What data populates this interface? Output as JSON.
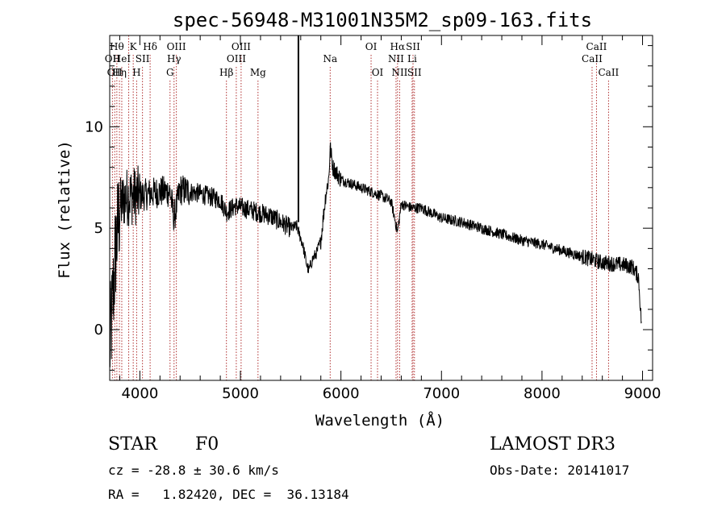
{
  "chart_data": {
    "type": "line",
    "title": "spec-56948-M31001N35M2_sp09-163.fits",
    "xlabel": "Wavelength (Å)",
    "ylabel": "Flux (relative)",
    "xlim": [
      3700,
      9100
    ],
    "ylim": [
      -2.5,
      14.5
    ],
    "xticks": [
      4000,
      5000,
      6000,
      7000,
      8000,
      9000
    ],
    "yticks": [
      0,
      5,
      10
    ],
    "spectrum_anchors": [
      [
        3700,
        -1.0
      ],
      [
        3720,
        0.5
      ],
      [
        3760,
        4.0
      ],
      [
        3800,
        6.0
      ],
      [
        3850,
        6.5
      ],
      [
        3900,
        6.6
      ],
      [
        4000,
        6.6
      ],
      [
        4100,
        6.7
      ],
      [
        4200,
        6.8
      ],
      [
        4300,
        6.8
      ],
      [
        4340,
        5.5
      ],
      [
        4400,
        6.9
      ],
      [
        4600,
        6.7
      ],
      [
        4800,
        6.4
      ],
      [
        4862,
        5.8
      ],
      [
        4950,
        6.1
      ],
      [
        5100,
        5.9
      ],
      [
        5300,
        5.6
      ],
      [
        5400,
        5.3
      ],
      [
        5500,
        5.0
      ],
      [
        5560,
        5.1
      ],
      [
        5580,
        4.8
      ],
      [
        5620,
        4.2
      ],
      [
        5660,
        3.2
      ],
      [
        5680,
        2.9
      ],
      [
        5720,
        3.5
      ],
      [
        5760,
        3.8
      ],
      [
        5800,
        4.4
      ],
      [
        5850,
        6.7
      ],
      [
        5880,
        7.5
      ],
      [
        5893,
        9.0
      ],
      [
        5920,
        8.0
      ],
      [
        6000,
        7.4
      ],
      [
        6100,
        7.2
      ],
      [
        6200,
        7.0
      ],
      [
        6300,
        6.8
      ],
      [
        6400,
        6.6
      ],
      [
        6500,
        6.3
      ],
      [
        6563,
        4.8
      ],
      [
        6600,
        6.2
      ],
      [
        6700,
        6.0
      ],
      [
        6800,
        6.0
      ],
      [
        7000,
        5.5
      ],
      [
        7200,
        5.3
      ],
      [
        7400,
        5.0
      ],
      [
        7600,
        4.7
      ],
      [
        7800,
        4.4
      ],
      [
        8000,
        4.2
      ],
      [
        8200,
        3.9
      ],
      [
        8400,
        3.6
      ],
      [
        8600,
        3.3
      ],
      [
        8800,
        3.2
      ],
      [
        8900,
        3.1
      ],
      [
        8960,
        2.6
      ],
      [
        8990,
        0.2
      ]
    ],
    "emission_spike": {
      "x": 5577,
      "y_top": 14.5,
      "y_base": 5.3
    },
    "spectral_lines": [
      {
        "wl": 3727,
        "label": "OII",
        "row": 2
      },
      {
        "wl": 3750,
        "label": "OII",
        "row": 3
      },
      {
        "wl": 3771,
        "label": "Hθ",
        "row": 1
      },
      {
        "wl": 3797,
        "label": "Hη",
        "row": 3
      },
      {
        "wl": 3820,
        "label": "HeI",
        "row": 2
      },
      {
        "wl": 3889,
        "label": "",
        "row": 0
      },
      {
        "wl": 3934,
        "label": "K",
        "row": 1
      },
      {
        "wl": 3968,
        "label": "H",
        "row": 3
      },
      {
        "wl": 4026,
        "label": "SII",
        "row": 2
      },
      {
        "wl": 4102,
        "label": "Hδ",
        "row": 1
      },
      {
        "wl": 4300,
        "label": "G",
        "row": 3
      },
      {
        "wl": 4340,
        "label": "Hγ",
        "row": 2
      },
      {
        "wl": 4363,
        "label": "OIII",
        "row": 1
      },
      {
        "wl": 4861,
        "label": "Hβ",
        "row": 3
      },
      {
        "wl": 4959,
        "label": "OIII",
        "row": 2
      },
      {
        "wl": 5007,
        "label": "OIII",
        "row": 1
      },
      {
        "wl": 5175,
        "label": "Mg",
        "row": 3
      },
      {
        "wl": 5893,
        "label": "Na",
        "row": 2
      },
      {
        "wl": 6300,
        "label": "OI",
        "row": 1
      },
      {
        "wl": 6364,
        "label": "OI",
        "row": 3
      },
      {
        "wl": 6548,
        "label": "NII",
        "row": 2
      },
      {
        "wl": 6563,
        "label": "Hα",
        "row": 1
      },
      {
        "wl": 6584,
        "label": "NII",
        "row": 3
      },
      {
        "wl": 6708,
        "label": "Li",
        "row": 2
      },
      {
        "wl": 6717,
        "label": "SII",
        "row": 1
      },
      {
        "wl": 6731,
        "label": "SII",
        "row": 3
      },
      {
        "wl": 8498,
        "label": "CaII",
        "row": 2
      },
      {
        "wl": 8542,
        "label": "CaII",
        "row": 1
      },
      {
        "wl": 8662,
        "label": "CaII",
        "row": 3
      }
    ],
    "colors": {
      "line": "#000000",
      "marker": "#b03030"
    }
  },
  "info": {
    "class": "STAR",
    "subclass": "F0",
    "survey": "LAMOST DR3",
    "redshift": "cz = -28.8 ± 30.6 km/s",
    "obs_date": "Obs-Date: 20141017",
    "coords": "RA =   1.82420, DEC =  36.13184"
  }
}
